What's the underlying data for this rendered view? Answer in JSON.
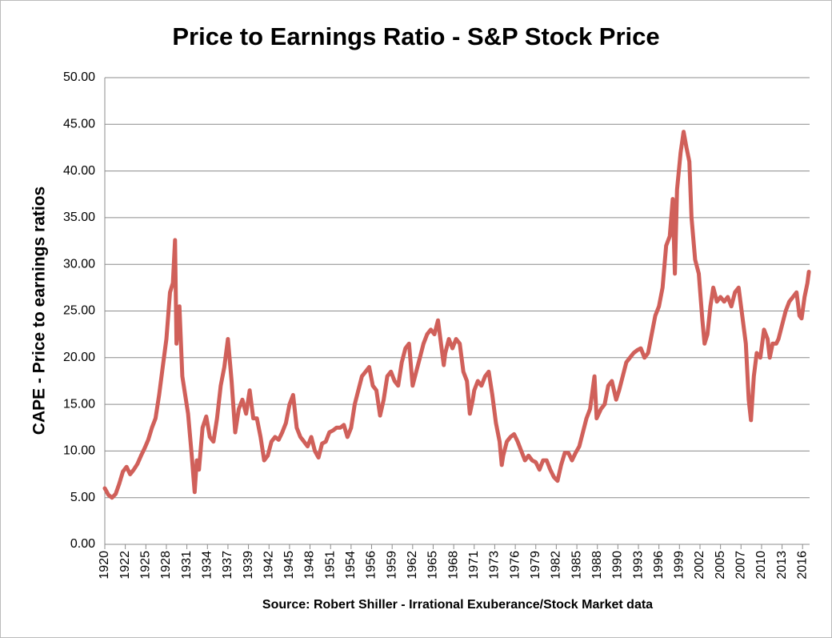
{
  "chart_data": {
    "type": "line",
    "title": "Price to Earnings Ratio - S&P Stock Price",
    "y_label": "CAPE - Price to earnings ratios",
    "source": "Source: Robert Shiller - Irrational Exuberance/Stock Market data",
    "grid": true,
    "xlim": [
      1920,
      2017.3
    ],
    "ylim": [
      0,
      50
    ],
    "yticks": [
      {
        "value": 0,
        "label": "0.00"
      },
      {
        "value": 5,
        "label": "5.00"
      },
      {
        "value": 10,
        "label": "10.00"
      },
      {
        "value": 15,
        "label": "15.00"
      },
      {
        "value": 20,
        "label": "20.00"
      },
      {
        "value": 25,
        "label": "25.00"
      },
      {
        "value": 30,
        "label": "30.00"
      },
      {
        "value": 35,
        "label": "35.00"
      },
      {
        "value": 40,
        "label": "40.00"
      },
      {
        "value": 45,
        "label": "45.00"
      },
      {
        "value": 50,
        "label": "50.00"
      }
    ],
    "xticks": [
      1920,
      {
        "value": 1922.83,
        "label": "1922"
      },
      {
        "value": 1925.67,
        "label": "1925"
      },
      {
        "value": 1928.5,
        "label": "1928"
      },
      {
        "value": 1931.33,
        "label": "1931"
      },
      {
        "value": 1934.17,
        "label": "1934"
      },
      1937,
      {
        "value": 1939.83,
        "label": "1939"
      },
      {
        "value": 1942.67,
        "label": "1942"
      },
      {
        "value": 1945.5,
        "label": "1945"
      },
      {
        "value": 1948.33,
        "label": "1948"
      },
      {
        "value": 1951.17,
        "label": "1951"
      },
      1954,
      {
        "value": 1956.83,
        "label": "1956"
      },
      {
        "value": 1959.67,
        "label": "1959"
      },
      {
        "value": 1962.5,
        "label": "1962"
      },
      {
        "value": 1965.33,
        "label": "1965"
      },
      {
        "value": 1968.17,
        "label": "1968"
      },
      1971,
      {
        "value": 1973.83,
        "label": "1973"
      },
      {
        "value": 1976.67,
        "label": "1976"
      },
      {
        "value": 1979.5,
        "label": "1979"
      },
      {
        "value": 1982.33,
        "label": "1982"
      },
      {
        "value": 1985.17,
        "label": "1985"
      },
      1988,
      {
        "value": 1990.83,
        "label": "1990"
      },
      {
        "value": 1993.67,
        "label": "1993"
      },
      {
        "value": 1996.5,
        "label": "1996"
      },
      {
        "value": 1999.33,
        "label": "1999"
      },
      {
        "value": 2002.17,
        "label": "2002"
      },
      2005,
      {
        "value": 2007.83,
        "label": "2007"
      },
      {
        "value": 2010.67,
        "label": "2010"
      },
      {
        "value": 2013.5,
        "label": "2013"
      },
      {
        "value": 2016.33,
        "label": "2016"
      }
    ],
    "series": [
      {
        "name": "CAPE",
        "color": "#d0605a",
        "x": [
          1920.0,
          1920.5,
          1921.0,
          1921.5,
          1922.0,
          1922.5,
          1923.0,
          1923.5,
          1924.0,
          1924.5,
          1925.0,
          1925.5,
          1926.0,
          1926.5,
          1927.0,
          1927.5,
          1928.0,
          1928.5,
          1929.0,
          1929.4,
          1929.7,
          1929.9,
          1930.3,
          1930.7,
          1931.0,
          1931.5,
          1932.0,
          1932.4,
          1932.7,
          1933.0,
          1933.5,
          1934.0,
          1934.5,
          1935.0,
          1935.5,
          1936.0,
          1936.5,
          1937.0,
          1937.5,
          1938.0,
          1938.5,
          1939.0,
          1939.5,
          1940.0,
          1940.5,
          1941.0,
          1941.5,
          1942.0,
          1942.5,
          1943.0,
          1943.5,
          1944.0,
          1944.5,
          1945.0,
          1945.5,
          1946.0,
          1946.5,
          1947.0,
          1947.5,
          1948.0,
          1948.5,
          1949.0,
          1949.5,
          1950.0,
          1950.5,
          1951.0,
          1951.5,
          1952.0,
          1952.5,
          1953.0,
          1953.5,
          1954.0,
          1954.5,
          1955.0,
          1955.5,
          1956.0,
          1956.5,
          1957.0,
          1957.5,
          1958.0,
          1958.5,
          1959.0,
          1959.5,
          1960.0,
          1960.5,
          1961.0,
          1961.5,
          1962.0,
          1962.5,
          1963.0,
          1963.5,
          1964.0,
          1964.5,
          1965.0,
          1965.5,
          1966.0,
          1966.5,
          1966.8,
          1967.0,
          1967.5,
          1968.0,
          1968.5,
          1969.0,
          1969.5,
          1970.0,
          1970.4,
          1970.8,
          1971.0,
          1971.5,
          1972.0,
          1972.5,
          1973.0,
          1973.5,
          1974.0,
          1974.5,
          1974.8,
          1975.0,
          1975.5,
          1976.0,
          1976.5,
          1977.0,
          1977.5,
          1978.0,
          1978.5,
          1979.0,
          1979.5,
          1980.0,
          1980.5,
          1981.0,
          1981.5,
          1982.0,
          1982.5,
          1983.0,
          1983.5,
          1984.0,
          1984.5,
          1985.0,
          1985.5,
          1986.0,
          1986.5,
          1987.0,
          1987.6,
          1987.9,
          1988.5,
          1989.0,
          1989.5,
          1990.0,
          1990.6,
          1991.0,
          1991.5,
          1992.0,
          1992.5,
          1993.0,
          1993.5,
          1994.0,
          1994.5,
          1995.0,
          1995.5,
          1996.0,
          1996.5,
          1997.0,
          1997.5,
          1998.0,
          1998.4,
          1998.7,
          1999.0,
          1999.5,
          1999.9,
          2000.3,
          2000.7,
          2001.0,
          2001.5,
          2002.0,
          2002.5,
          2002.8,
          2003.2,
          2003.6,
          2004.0,
          2004.5,
          2005.0,
          2005.5,
          2006.0,
          2006.5,
          2007.0,
          2007.5,
          2008.0,
          2008.5,
          2008.9,
          2009.2,
          2009.6,
          2010.0,
          2010.5,
          2011.0,
          2011.5,
          2011.8,
          2012.2,
          2012.7,
          2013.0,
          2013.5,
          2014.0,
          2014.5,
          2015.0,
          2015.5,
          2015.9,
          2016.2,
          2016.6,
          2017.0,
          2017.2
        ],
        "values": [
          6.0,
          5.3,
          5.0,
          5.4,
          6.5,
          7.8,
          8.3,
          7.5,
          8.0,
          8.6,
          9.5,
          10.3,
          11.2,
          12.5,
          13.5,
          16.0,
          19.0,
          22.0,
          27.0,
          28.0,
          32.6,
          21.5,
          25.5,
          18.0,
          16.5,
          14.0,
          9.5,
          5.6,
          9.0,
          8.0,
          12.5,
          13.7,
          11.5,
          11.0,
          13.5,
          17.0,
          19.0,
          22.0,
          17.5,
          12.0,
          14.5,
          15.5,
          14.0,
          16.5,
          13.5,
          13.5,
          11.5,
          9.0,
          9.5,
          11.0,
          11.5,
          11.2,
          12.0,
          13.0,
          15.0,
          16.0,
          12.5,
          11.5,
          11.0,
          10.5,
          11.5,
          10.0,
          9.3,
          10.8,
          11.0,
          12.0,
          12.2,
          12.5,
          12.5,
          12.8,
          11.5,
          12.5,
          15.0,
          16.5,
          18.0,
          18.5,
          19.0,
          17.0,
          16.5,
          13.8,
          15.5,
          18.0,
          18.5,
          17.5,
          17.0,
          19.5,
          21.0,
          21.5,
          17.0,
          18.5,
          20.0,
          21.5,
          22.5,
          23.0,
          22.5,
          24.0,
          21.0,
          19.2,
          20.5,
          22.0,
          21.0,
          22.0,
          21.5,
          18.5,
          17.5,
          14.0,
          15.5,
          16.5,
          17.5,
          17.0,
          18.0,
          18.5,
          16.0,
          13.0,
          11.0,
          8.5,
          9.5,
          11.0,
          11.5,
          11.8,
          11.0,
          10.0,
          9.0,
          9.5,
          9.0,
          8.8,
          8.0,
          9.0,
          9.0,
          8.0,
          7.2,
          6.8,
          8.5,
          9.8,
          9.8,
          9.0,
          9.8,
          10.5,
          12.0,
          13.5,
          14.5,
          18.0,
          13.5,
          14.5,
          15.0,
          17.0,
          17.5,
          15.5,
          16.5,
          18.0,
          19.5,
          20.0,
          20.5,
          20.8,
          21.0,
          20.0,
          20.5,
          22.5,
          24.5,
          25.5,
          27.5,
          32.0,
          33.0,
          37.0,
          29.0,
          38.0,
          42.0,
          44.2,
          42.5,
          41.0,
          35.0,
          30.5,
          29.0,
          24.0,
          21.5,
          22.5,
          25.5,
          27.5,
          26.0,
          26.5,
          26.0,
          26.5,
          25.5,
          27.0,
          27.5,
          24.5,
          21.5,
          15.5,
          13.3,
          18.0,
          20.5,
          20.0,
          23.0,
          22.0,
          20.0,
          21.5,
          21.5,
          22.0,
          23.5,
          25.0,
          26.0,
          26.5,
          27.0,
          24.5,
          24.2,
          26.5,
          28.0,
          29.2
        ]
      }
    ]
  }
}
